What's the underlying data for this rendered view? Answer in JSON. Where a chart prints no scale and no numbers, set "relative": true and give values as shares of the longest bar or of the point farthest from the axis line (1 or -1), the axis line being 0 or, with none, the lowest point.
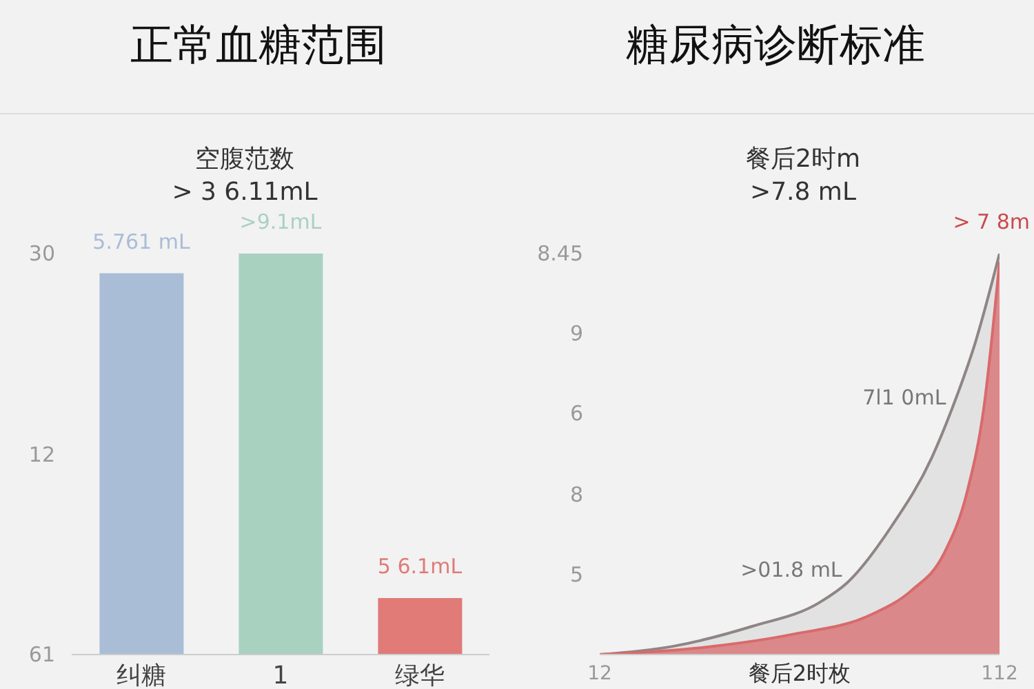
{
  "chart_data": [
    {
      "type": "bar",
      "title": "正常血糖范围",
      "subtitle": "空腹范数\n> 3 6.11mL",
      "categories": [
        "纠糖",
        "1",
        "绿华"
      ],
      "values": [
        0.951,
        1,
        0.141
      ],
      "colors": [
        "#aabdd6",
        "#a9d1c0",
        "#e07b78"
      ],
      "relative": true,
      "annotations": [
        "30",
        "12",
        "61",
        {
          "text": "5.761 mL",
          "x": "纠糖",
          "y": 0.951
        },
        {
          "text": ">9.1mL",
          "x": "1",
          "y": 1
        },
        {
          "text": "5 6.1mL",
          "x": "绿华",
          "y": 0.141
        }
      ]
    },
    {
      "type": "area",
      "title": "糖尿病诊断标准",
      "subtitle": "餐后2时m\n>7.8 mL",
      "xlabel": "餐后2时枚",
      "xlim": [
        12,
        112
      ],
      "xticks": [
        12,
        112
      ],
      "relative": true,
      "marker": "none",
      "series": [
        {
          "color": "#8f8585",
          "x": [
            12,
            30,
            50,
            67,
            74,
            85,
            95,
            100,
            106,
            112
          ],
          "values": [
            0,
            0.02,
            0.07,
            0.13,
            0.18,
            0.32,
            0.49,
            0.61,
            0.78,
            1
          ]
        },
        {
          "color": "#d86a6c",
          "x": [
            12,
            40,
            60,
            80,
            90,
            98,
            104,
            108,
            112
          ],
          "values": [
            0,
            0.02,
            0.05,
            0.1,
            0.16,
            0.25,
            0.41,
            0.61,
            0.98
          ]
        }
      ],
      "annotations": [
        "8.45",
        "9",
        "6",
        "8",
        "5",
        {
          "text": ">01.8 mL",
          "x": 74,
          "y": 0.18
        },
        {
          "text": "7l1 0mL",
          "x": 100,
          "y": 0.61
        },
        {
          "text": "> 7 8m",
          "x": 112,
          "y": 1
        }
      ]
    }
  ]
}
